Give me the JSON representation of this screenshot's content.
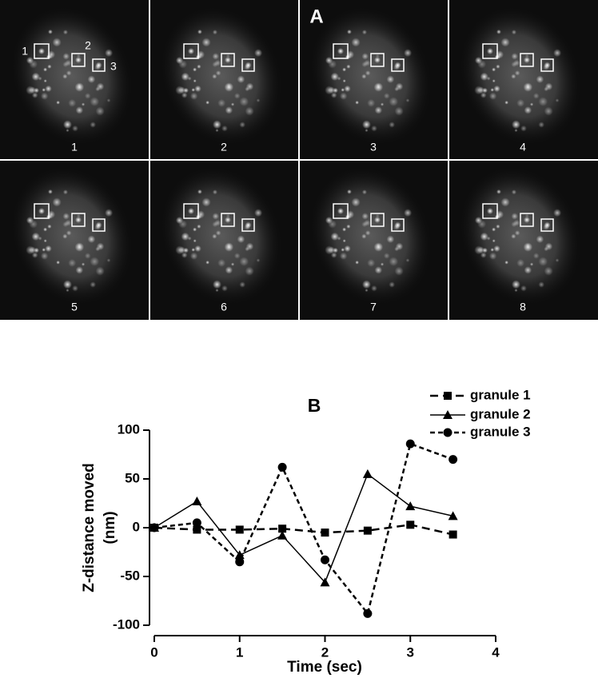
{
  "panel_a": {
    "label": "A",
    "frame_labels": [
      "1",
      "2",
      "3",
      "4",
      "5",
      "6",
      "7",
      "8"
    ],
    "box_labels": [
      "1",
      "2",
      "3"
    ]
  },
  "chart_data": {
    "type": "line",
    "title": "B",
    "xlabel": "Time (sec)",
    "ylabel_lines": [
      "Z-distance moved",
      "(nm)"
    ],
    "x": [
      0,
      0.5,
      1,
      1.5,
      2,
      2.5,
      3,
      3.5
    ],
    "series": [
      {
        "name": "granule 1",
        "color": "#000000",
        "marker": "square",
        "dash": "long",
        "values": [
          0,
          -2,
          -2,
          -1,
          -5,
          -3,
          3,
          -7
        ]
      },
      {
        "name": "granule 2",
        "color": "#000000",
        "marker": "triangle",
        "dash": "solid",
        "values": [
          0,
          27,
          -28,
          -8,
          -56,
          55,
          22,
          12
        ]
      },
      {
        "name": "granule 3",
        "color": "#000000",
        "marker": "circle",
        "dash": "short",
        "values": [
          0,
          5,
          -35,
          62,
          -33,
          -88,
          86,
          70
        ]
      }
    ],
    "xlim": [
      0,
      4
    ],
    "xticks": [
      0,
      1,
      2,
      3,
      4
    ],
    "ylim": [
      -100,
      100
    ],
    "yticks": [
      -100,
      -50,
      0,
      50,
      100
    ],
    "legend": "upper right"
  }
}
